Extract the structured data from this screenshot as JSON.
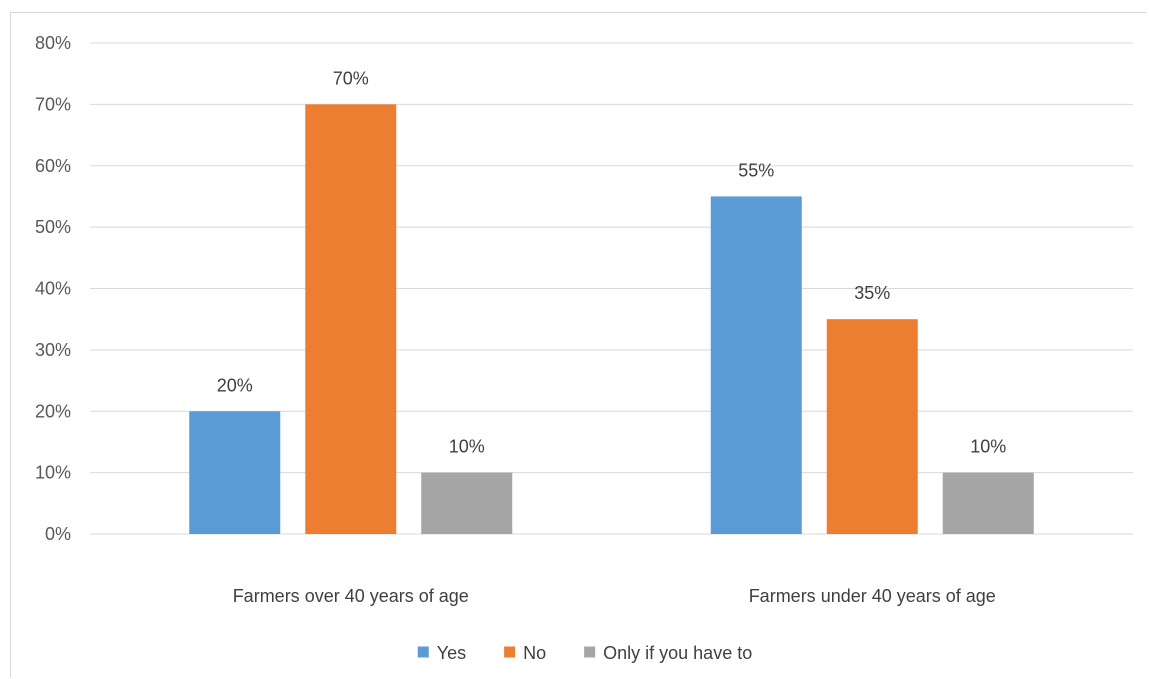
{
  "chart_data": {
    "type": "bar",
    "categories": [
      "Farmers over 40 years of age",
      "Farmers under 40 years of age"
    ],
    "series": [
      {
        "name": "Yes",
        "values": [
          20,
          55
        ],
        "color": "#5b9bd5"
      },
      {
        "name": "No",
        "values": [
          70,
          35
        ],
        "color": "#ed7d31"
      },
      {
        "name": "Only if you have to",
        "values": [
          10,
          10
        ],
        "color": "#a5a5a5"
      }
    ],
    "value_labels": [
      [
        "20%",
        "55%"
      ],
      [
        "70%",
        "35%"
      ],
      [
        "10%",
        "10%"
      ]
    ],
    "y_ticks": [
      "0%",
      "10%",
      "20%",
      "30%",
      "40%",
      "50%",
      "60%",
      "70%",
      "80%"
    ],
    "ylim": [
      0,
      80
    ],
    "grid": true,
    "legend_position": "bottom",
    "title": "",
    "xlabel": "",
    "ylabel": ""
  }
}
